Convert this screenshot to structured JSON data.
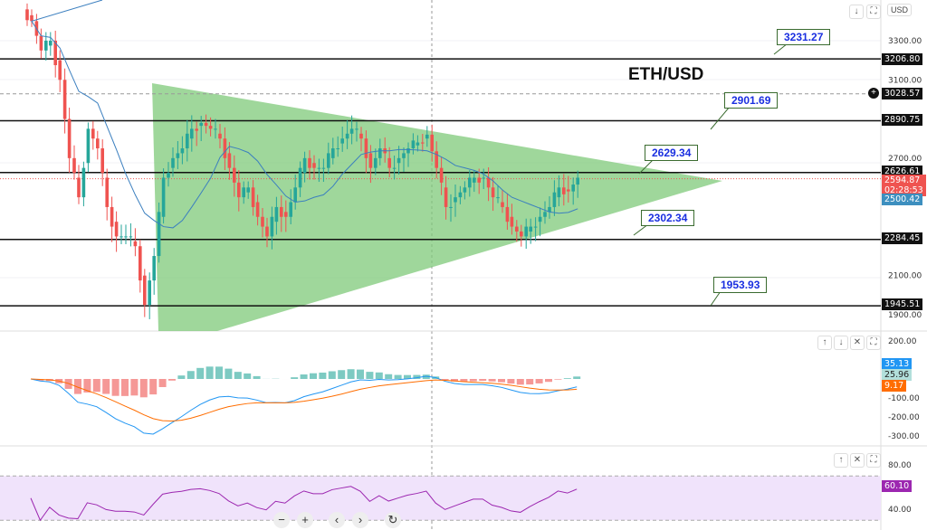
{
  "chart_data": {
    "type": "candlestick",
    "title": "ETH/USD",
    "currency": "USD",
    "ylim": [
      1880,
      3500
    ],
    "price_ticks": [
      "3300.00",
      "3100.00",
      "2700.00",
      "2100.00",
      "1900.00"
    ],
    "closes": [
      3400,
      3250,
      3300,
      3100,
      2700,
      2500,
      2850,
      2750,
      2450,
      2300,
      2300,
      2250,
      1950,
      2200,
      2600,
      2700,
      2750,
      2850,
      2880,
      2850,
      2800,
      2650,
      2500,
      2550,
      2400,
      2300,
      2450,
      2400,
      2550,
      2700,
      2650,
      2650,
      2750,
      2800,
      2850,
      2800,
      2650,
      2750,
      2650,
      2700,
      2750,
      2780,
      2820,
      2650,
      2450,
      2500,
      2550,
      2600,
      2600,
      2500,
      2450,
      2350,
      2300,
      2350,
      2400,
      2450,
      2550,
      2530,
      2600
    ],
    "horizontal_levels": [
      {
        "price": 3206.8,
        "label": "3206.80",
        "annotation": "3231.27"
      },
      {
        "price": 2890.75,
        "label": "2890.75",
        "annotation": "2901.69"
      },
      {
        "price": 2626.61,
        "label": "2626.61",
        "annotation": "2629.34"
      },
      {
        "price": 2284.45,
        "label": "2284.45",
        "annotation": "2302.34"
      },
      {
        "price": 1945.51,
        "label": "1945.51",
        "annotation": "1953.93"
      }
    ],
    "crosshair_price": "3028.57",
    "last_price": "2594.87",
    "countdown": "02:28:53",
    "ma_value": "2500.42",
    "triangle_color": "#7fc97a",
    "up_color": "#26a69a",
    "down_color": "#ef5350",
    "macd": {
      "ticks": [
        "200.00",
        "-100.00",
        "-200.00",
        "-300.00"
      ],
      "macd": "35.13",
      "hist": "25.96",
      "signal": "9.17",
      "macd_color": "#2196f3",
      "signal_color": "#ff6d00"
    },
    "rsi": {
      "ticks": [
        "80.00",
        "40.00"
      ],
      "value": "60.10",
      "color": "#9c27b0",
      "band": [
        30,
        70
      ]
    }
  },
  "toolbar": {
    "minus": "−",
    "plus": "+",
    "left": "‹",
    "right": "›",
    "reset": "↻"
  },
  "pane_buttons": {
    "up": "↑",
    "down": "↓",
    "close": "✕",
    "max": "⛶"
  }
}
